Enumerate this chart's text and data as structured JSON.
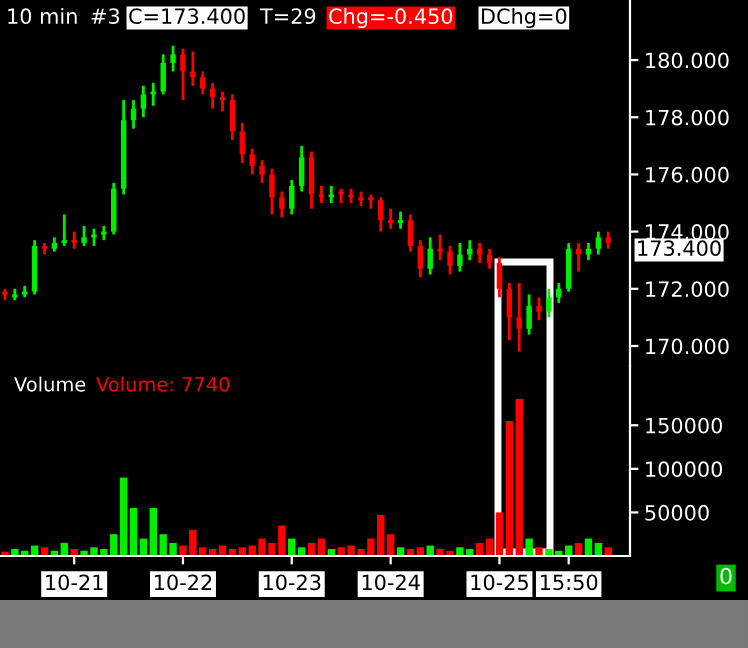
{
  "chart_data": [
    {
      "type": "candlestick",
      "annotations": [
        "10 min",
        "#3",
        "C=173.400",
        "T=29",
        "Chg=-0.450",
        "DChg=0",
        "173.400"
      ],
      "categories": [
        null,
        null,
        null,
        null,
        null,
        null,
        null,
        null,
        null,
        null,
        null,
        null,
        null,
        null,
        null,
        null,
        null,
        null,
        null,
        null,
        null,
        null,
        null,
        null,
        null,
        null,
        null,
        null,
        null,
        null,
        null,
        null,
        null,
        null,
        null,
        null,
        null,
        null,
        null,
        null,
        null,
        null,
        null,
        null,
        null,
        null,
        null,
        null,
        null,
        null,
        null,
        null,
        null,
        null,
        null,
        null,
        null,
        null,
        null,
        null,
        null,
        null
      ],
      "ohlc": [
        [
          171.9,
          172.0,
          171.6,
          171.8
        ],
        [
          171.7,
          172.0,
          171.6,
          171.8
        ],
        [
          171.8,
          172.1,
          171.7,
          171.9
        ],
        [
          171.9,
          173.7,
          171.8,
          173.5
        ],
        [
          173.5,
          173.6,
          173.2,
          173.4
        ],
        [
          173.4,
          173.8,
          173.3,
          173.6
        ],
        [
          173.6,
          174.6,
          173.5,
          173.7
        ],
        [
          173.7,
          174.0,
          173.4,
          173.6
        ],
        [
          173.6,
          174.2,
          173.5,
          173.8
        ],
        [
          173.8,
          174.1,
          173.5,
          173.9
        ],
        [
          173.9,
          174.2,
          173.7,
          174.0
        ],
        [
          174.0,
          175.7,
          173.9,
          175.5
        ],
        [
          175.5,
          178.6,
          175.3,
          177.9
        ],
        [
          177.9,
          178.6,
          177.6,
          178.3
        ],
        [
          178.3,
          179.1,
          178.0,
          178.8
        ],
        [
          178.8,
          179.2,
          178.4,
          178.9
        ],
        [
          178.9,
          180.2,
          178.8,
          179.9
        ],
        [
          179.9,
          180.5,
          179.6,
          180.2
        ],
        [
          180.2,
          180.4,
          178.6,
          179.6
        ],
        [
          179.6,
          180.3,
          179.1,
          179.4
        ],
        [
          179.4,
          179.6,
          178.8,
          179.0
        ],
        [
          179.0,
          179.2,
          178.3,
          178.7
        ],
        [
          178.7,
          178.9,
          178.2,
          178.6
        ],
        [
          178.6,
          178.8,
          177.2,
          177.5
        ],
        [
          177.5,
          177.8,
          176.4,
          176.7
        ],
        [
          176.7,
          176.9,
          176.0,
          176.3
        ],
        [
          176.3,
          176.5,
          175.7,
          176.0
        ],
        [
          176.0,
          176.2,
          174.6,
          175.2
        ],
        [
          175.2,
          175.4,
          174.5,
          174.8
        ],
        [
          174.8,
          175.8,
          174.6,
          175.6
        ],
        [
          175.6,
          177.0,
          175.4,
          176.6
        ],
        [
          176.6,
          176.8,
          174.8,
          175.3
        ],
        [
          175.3,
          175.6,
          175.0,
          175.2
        ],
        [
          175.2,
          175.6,
          175.0,
          175.3
        ],
        [
          175.4,
          175.5,
          175.0,
          175.3
        ],
        [
          175.3,
          175.5,
          175.0,
          175.2
        ],
        [
          175.2,
          175.4,
          174.9,
          175.1
        ],
        [
          175.2,
          175.3,
          174.8,
          175.1
        ],
        [
          175.1,
          175.2,
          174.0,
          174.4
        ],
        [
          174.4,
          174.8,
          174.1,
          174.3
        ],
        [
          174.3,
          174.7,
          174.1,
          174.4
        ],
        [
          174.4,
          174.6,
          173.3,
          173.5
        ],
        [
          173.5,
          173.7,
          172.4,
          172.7
        ],
        [
          172.7,
          173.8,
          172.5,
          173.4
        ],
        [
          173.4,
          173.9,
          173.0,
          173.3
        ],
        [
          173.3,
          173.5,
          172.5,
          172.8
        ],
        [
          172.8,
          173.6,
          172.6,
          173.2
        ],
        [
          173.2,
          173.7,
          173.0,
          173.4
        ],
        [
          173.4,
          173.6,
          172.9,
          173.2
        ],
        [
          173.2,
          173.4,
          172.7,
          172.9
        ],
        [
          172.9,
          173.1,
          171.7,
          172.0
        ],
        [
          172.0,
          172.2,
          170.2,
          171.0
        ],
        [
          171.0,
          172.2,
          169.8,
          170.6
        ],
        [
          170.6,
          171.8,
          170.4,
          171.4
        ],
        [
          171.4,
          171.7,
          170.9,
          171.2
        ],
        [
          171.2,
          172.0,
          171.0,
          171.7
        ],
        [
          171.7,
          172.2,
          171.5,
          172.0
        ],
        [
          172.0,
          173.6,
          171.9,
          173.4
        ],
        [
          173.4,
          173.6,
          172.6,
          173.2
        ],
        [
          173.2,
          173.6,
          173.0,
          173.4
        ],
        [
          173.4,
          174.0,
          173.2,
          173.8
        ],
        [
          173.8,
          174.0,
          173.4,
          173.6
        ]
      ],
      "colors": [
        "#ff0000",
        "#00ee00",
        "#00ee00",
        "#00ee00",
        "#ff0000",
        "#00ee00",
        "#00ee00",
        "#ff0000",
        "#00ee00",
        "#00ee00",
        "#00ee00",
        "#00ee00",
        "#00ee00",
        "#00ee00",
        "#00ee00",
        "#00ee00",
        "#00ee00",
        "#00ee00",
        "#ff0000",
        "#ff0000",
        "#ff0000",
        "#ff0000",
        "#ff0000",
        "#ff0000",
        "#ff0000",
        "#ff0000",
        "#ff0000",
        "#ff0000",
        "#ff0000",
        "#00ee00",
        "#00ee00",
        "#ff0000",
        "#ff0000",
        "#00ee00",
        "#ff0000",
        "#ff0000",
        "#ff0000",
        "#ff0000",
        "#ff0000",
        "#ff0000",
        "#00ee00",
        "#ff0000",
        "#ff0000",
        "#00ee00",
        "#ff0000",
        "#ff0000",
        "#00ee00",
        "#00ee00",
        "#ff0000",
        "#ff0000",
        "#ff0000",
        "#ff0000",
        "#ff0000",
        "#00ee00",
        "#ff0000",
        "#00ee00",
        "#00ee00",
        "#00ee00",
        "#ff0000",
        "#00ee00",
        "#00ee00",
        "#ff0000"
      ],
      "ylim": [
        169.3,
        182.1
      ],
      "yticks": [
        {
          "value": 170,
          "label": "170.000"
        },
        {
          "value": 172,
          "label": "172.000"
        },
        {
          "value": 174,
          "label": "174.000"
        },
        {
          "value": 176,
          "label": "176.000"
        },
        {
          "value": 178,
          "label": "178.000"
        },
        {
          "value": 180,
          "label": "180.000"
        }
      ],
      "tick_labels": "y",
      "grid": false,
      "legend": false
    },
    {
      "type": "bar",
      "annotations": [
        "Volume",
        "Volume: 7740",
        "0"
      ],
      "categories": [
        null,
        null,
        null,
        null,
        null,
        null,
        null,
        "10-21",
        null,
        null,
        null,
        null,
        null,
        null,
        null,
        null,
        null,
        null,
        "10-22",
        null,
        null,
        null,
        null,
        null,
        null,
        null,
        null,
        null,
        null,
        "10-23",
        null,
        null,
        null,
        null,
        null,
        null,
        null,
        null,
        null,
        "10-24",
        null,
        null,
        null,
        null,
        null,
        null,
        null,
        null,
        null,
        null,
        "10-25",
        null,
        null,
        null,
        null,
        null,
        null,
        "15:50",
        null,
        null,
        null,
        null
      ],
      "values": [
        5000,
        8000,
        6000,
        12000,
        10000,
        6000,
        15000,
        8000,
        6000,
        10000,
        8000,
        25000,
        90000,
        55000,
        20000,
        55000,
        25000,
        15000,
        12000,
        30000,
        10000,
        8000,
        12000,
        8000,
        10000,
        12000,
        20000,
        15000,
        35000,
        20000,
        10000,
        15000,
        20000,
        8000,
        10000,
        12000,
        8000,
        20000,
        47000,
        25000,
        10000,
        8000,
        10000,
        12000,
        8000,
        6000,
        10000,
        8000,
        15000,
        20000,
        50000,
        155000,
        180000,
        20000,
        10000,
        8000,
        6000,
        12000,
        15000,
        20000,
        15000,
        10000
      ],
      "colors": [
        "#ff0000",
        "#00ee00",
        "#00ee00",
        "#00ee00",
        "#ff0000",
        "#00ee00",
        "#00ee00",
        "#ff0000",
        "#00ee00",
        "#00ee00",
        "#00ee00",
        "#00ee00",
        "#00ee00",
        "#00ee00",
        "#00ee00",
        "#00ee00",
        "#00ee00",
        "#00ee00",
        "#ff0000",
        "#ff0000",
        "#ff0000",
        "#ff0000",
        "#ff0000",
        "#ff0000",
        "#ff0000",
        "#ff0000",
        "#ff0000",
        "#ff0000",
        "#ff0000",
        "#00ee00",
        "#00ee00",
        "#ff0000",
        "#ff0000",
        "#00ee00",
        "#ff0000",
        "#ff0000",
        "#ff0000",
        "#ff0000",
        "#ff0000",
        "#ff0000",
        "#00ee00",
        "#ff0000",
        "#ff0000",
        "#00ee00",
        "#ff0000",
        "#ff0000",
        "#00ee00",
        "#00ee00",
        "#ff0000",
        "#ff0000",
        "#ff0000",
        "#ff0000",
        "#ff0000",
        "#00ee00",
        "#ff0000",
        "#00ee00",
        "#00ee00",
        "#00ee00",
        "#ff0000",
        "#00ee00",
        "#00ee00",
        "#ff0000"
      ],
      "ylim": [
        0,
        218000
      ],
      "yticks": [
        50000,
        100000,
        150000
      ],
      "grid": false,
      "legend": false
    }
  ]
}
